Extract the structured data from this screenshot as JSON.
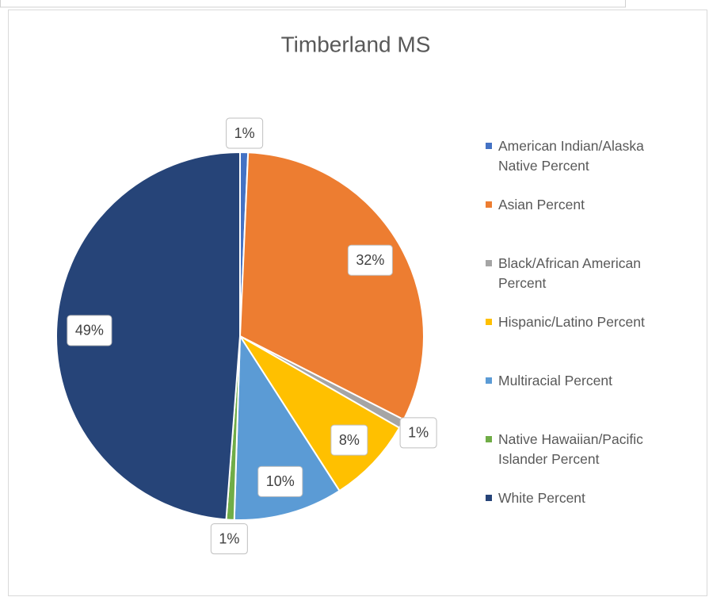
{
  "chart_data": {
    "type": "pie",
    "title": "Timberland MS",
    "categories": [
      "American Indian/Alaska Native Percent",
      "Asian Percent",
      "Black/African American Percent",
      "Hispanic/Latino Percent",
      "Multiracial Percent",
      "Native Hawaiian/Pacific Islander Percent",
      "White Percent"
    ],
    "values": [
      0.7,
      31.8,
      0.8,
      7.6,
      9.6,
      0.7,
      48.8
    ],
    "value_labels": [
      "1%",
      "32%",
      "1%",
      "8%",
      "10%",
      "1%",
      "49%"
    ],
    "colors": [
      "#4472c4",
      "#ed7d31",
      "#a5a5a5",
      "#ffc000",
      "#5b9bd5",
      "#70ad47",
      "#264478"
    ],
    "legend": "right"
  }
}
